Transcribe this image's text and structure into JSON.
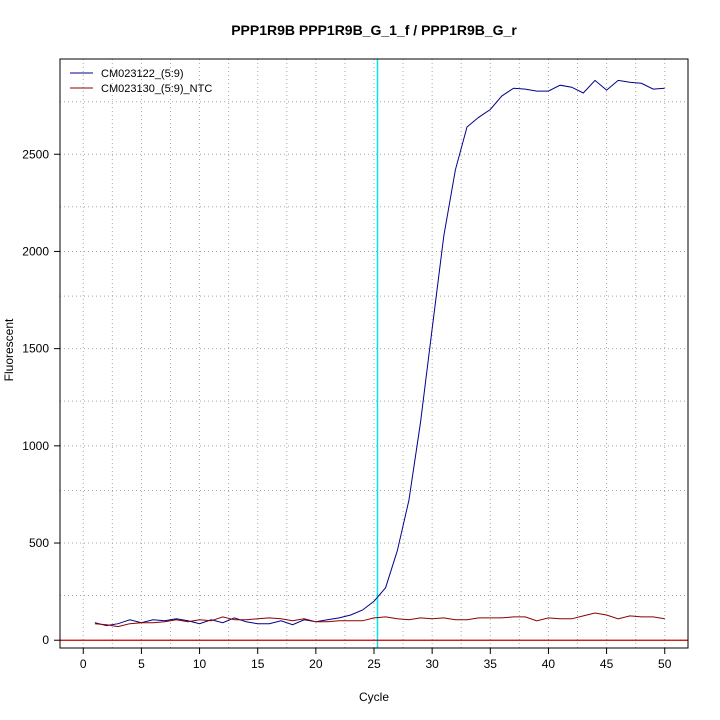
{
  "chart_data": {
    "type": "line",
    "title": "PPP1R9B  PPP1R9B_G_1_f / PPP1R9B_G_r",
    "xlabel": "Cycle",
    "ylabel": "Fluorescent",
    "xlim": [
      -2,
      52
    ],
    "ylim": [
      -40,
      2990
    ],
    "xticks": [
      0,
      5,
      10,
      15,
      20,
      25,
      30,
      35,
      40,
      45,
      50
    ],
    "yticks": [
      0,
      500,
      1000,
      1500,
      2000,
      2500
    ],
    "grid": true,
    "vgrid": [
      2.5,
      7.5,
      12.5,
      17.5,
      22.5,
      27.5,
      32.5,
      37.5,
      42.5,
      47.5
    ],
    "hgrid": [
      0,
      230,
      500,
      770,
      1000,
      1230,
      1500,
      1770,
      2000,
      2230,
      2500,
      2770
    ],
    "threshold_cycle": 25.3,
    "threshold_color": "#00e5ee",
    "baseline_value": 0,
    "baseline_color": "#cc0000",
    "legend_position": "top-left",
    "series": [
      {
        "name": "CM023122_(5:9)",
        "color": "#00008b",
        "x": [
          1,
          2,
          3,
          4,
          5,
          6,
          7,
          8,
          9,
          10,
          11,
          12,
          13,
          14,
          15,
          16,
          17,
          18,
          19,
          20,
          21,
          22,
          23,
          24,
          25,
          26,
          27,
          28,
          29,
          30,
          31,
          32,
          33,
          34,
          35,
          36,
          37,
          38,
          39,
          40,
          41,
          42,
          43,
          44,
          45,
          46,
          47,
          48,
          49,
          50
        ],
        "values": [
          90,
          75,
          85,
          105,
          90,
          105,
          100,
          110,
          100,
          85,
          105,
          90,
          115,
          95,
          85,
          85,
          100,
          80,
          105,
          95,
          105,
          115,
          130,
          155,
          200,
          270,
          460,
          720,
          1120,
          1600,
          2080,
          2420,
          2640,
          2690,
          2730,
          2800,
          2840,
          2835,
          2825,
          2825,
          2855,
          2845,
          2815,
          2880,
          2830,
          2880,
          2870,
          2865,
          2835,
          2840
        ]
      },
      {
        "name": "CM023130_(5:9)_NTC",
        "color": "#8b0000",
        "x": [
          1,
          2,
          3,
          4,
          5,
          6,
          7,
          8,
          9,
          10,
          11,
          12,
          13,
          14,
          15,
          16,
          17,
          18,
          19,
          20,
          21,
          22,
          23,
          24,
          25,
          26,
          27,
          28,
          29,
          30,
          31,
          32,
          33,
          34,
          35,
          36,
          37,
          38,
          39,
          40,
          41,
          42,
          43,
          44,
          45,
          46,
          47,
          48,
          49,
          50
        ],
        "values": [
          85,
          80,
          70,
          85,
          90,
          90,
          95,
          105,
          95,
          105,
          100,
          120,
          105,
          105,
          110,
          115,
          110,
          100,
          110,
          95,
          95,
          100,
          100,
          100,
          115,
          120,
          110,
          105,
          115,
          110,
          115,
          105,
          105,
          115,
          115,
          115,
          120,
          120,
          100,
          115,
          110,
          110,
          125,
          140,
          130,
          110,
          125,
          120,
          120,
          110
        ]
      }
    ]
  }
}
